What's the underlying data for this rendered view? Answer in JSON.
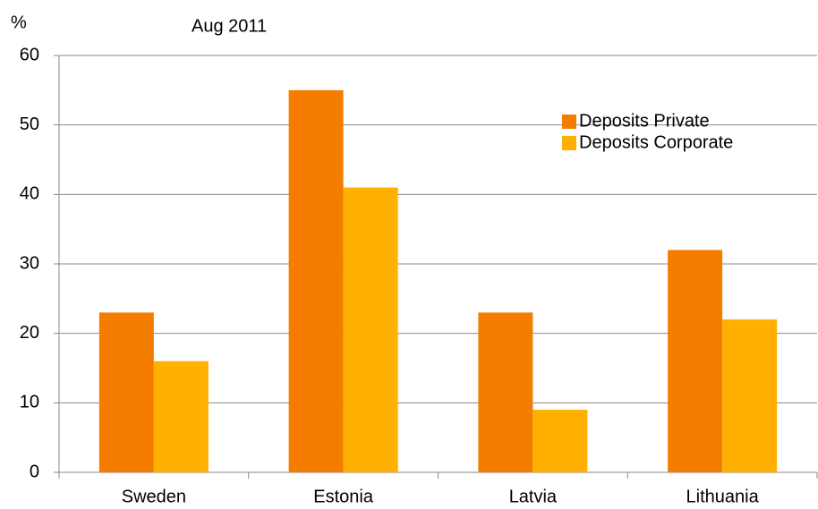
{
  "chart_data": {
    "type": "bar",
    "subtitle": "Aug 2011",
    "y_label": "%",
    "categories": [
      "Sweden",
      "Estonia",
      "Latvia",
      "Lithuania"
    ],
    "series": [
      {
        "name": "Deposits Private",
        "color": "#f47d00",
        "values": [
          23,
          55,
          23,
          32
        ]
      },
      {
        "name": "Deposits Corporate",
        "color": "#ffb000",
        "values": [
          16,
          41,
          9,
          22
        ]
      }
    ],
    "ylim": [
      0,
      60
    ],
    "yticks": [
      0,
      10,
      20,
      30,
      40,
      50,
      60
    ],
    "grid": true,
    "legend": "top-right"
  }
}
